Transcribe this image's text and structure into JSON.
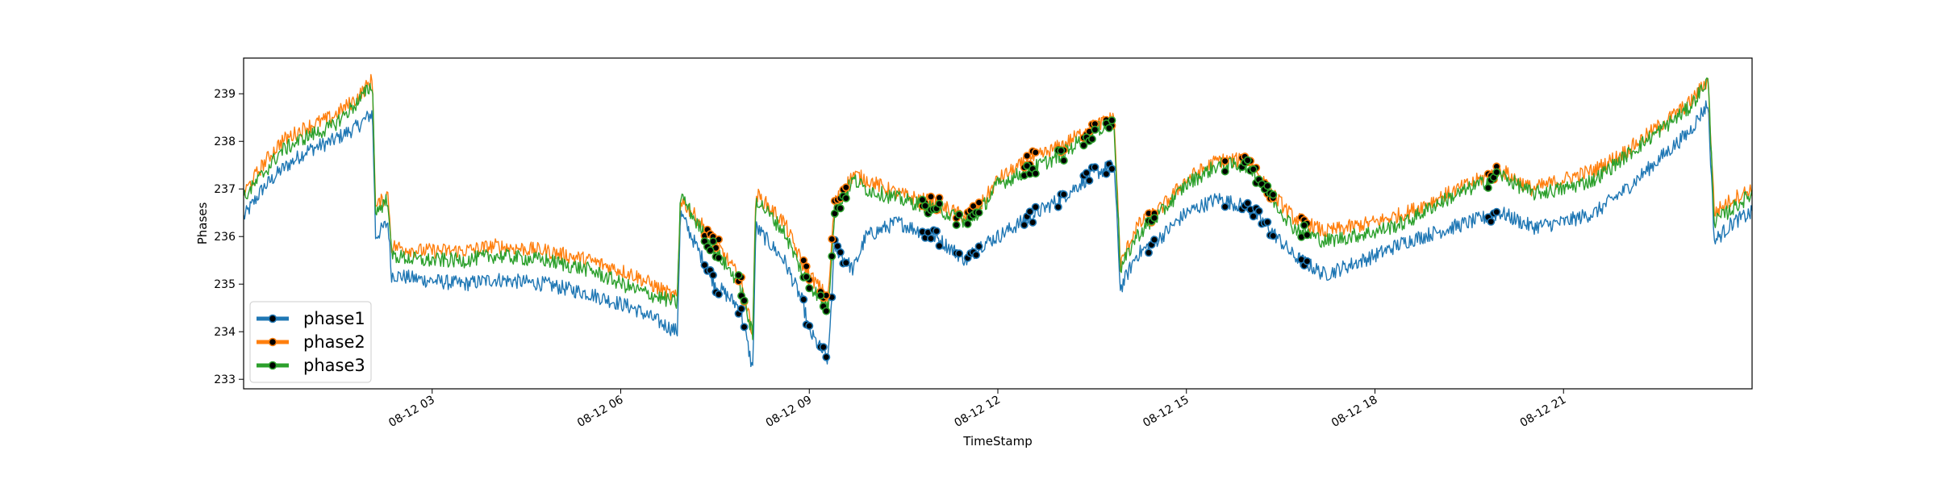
{
  "chart_data": {
    "type": "line",
    "xlabel": "TimeStamp",
    "ylabel": "Phases",
    "xlim": [
      0.0,
      24.0
    ],
    "ylim": [
      232.8,
      239.75
    ],
    "x_ticks": [
      {
        "value": 3,
        "label": "08-12 03"
      },
      {
        "value": 6,
        "label": "08-12 06"
      },
      {
        "value": 9,
        "label": "08-12 09"
      },
      {
        "value": 12,
        "label": "08-12 12"
      },
      {
        "value": 15,
        "label": "08-12 15"
      },
      {
        "value": 18,
        "label": "08-12 18"
      },
      {
        "value": 21,
        "label": "08-12 21"
      }
    ],
    "y_ticks": [
      233,
      234,
      235,
      236,
      237,
      238,
      239
    ],
    "grid": false,
    "legend": "lower-left",
    "series": [
      {
        "name": "phase1",
        "color": "#1f77b4",
        "points": [
          [
            0.0,
            236.4
          ],
          [
            0.3,
            237.0
          ],
          [
            0.6,
            237.4
          ],
          [
            1.0,
            237.8
          ],
          [
            1.4,
            238.0
          ],
          [
            1.8,
            238.3
          ],
          [
            2.05,
            238.6
          ],
          [
            2.1,
            236.0
          ],
          [
            2.3,
            236.3
          ],
          [
            2.35,
            235.2
          ],
          [
            2.8,
            235.1
          ],
          [
            3.5,
            235.0
          ],
          [
            4.0,
            235.1
          ],
          [
            4.8,
            235.0
          ],
          [
            5.5,
            234.8
          ],
          [
            6.2,
            234.5
          ],
          [
            6.9,
            234.0
          ],
          [
            6.95,
            236.5
          ],
          [
            7.2,
            235.8
          ],
          [
            7.5,
            235.0
          ],
          [
            7.9,
            234.5
          ],
          [
            8.1,
            233.2
          ],
          [
            8.15,
            236.2
          ],
          [
            8.6,
            235.5
          ],
          [
            8.9,
            234.6
          ],
          [
            9.0,
            234.0
          ],
          [
            9.3,
            233.4
          ],
          [
            9.4,
            235.8
          ],
          [
            9.7,
            235.3
          ],
          [
            9.9,
            236.0
          ],
          [
            10.4,
            236.3
          ],
          [
            11.0,
            236.0
          ],
          [
            11.5,
            235.5
          ],
          [
            11.7,
            235.8
          ],
          [
            12.0,
            236.0
          ],
          [
            12.5,
            236.4
          ],
          [
            13.0,
            236.8
          ],
          [
            13.5,
            237.3
          ],
          [
            13.85,
            237.5
          ],
          [
            13.95,
            234.9
          ],
          [
            14.2,
            235.6
          ],
          [
            14.6,
            236.0
          ],
          [
            15.0,
            236.5
          ],
          [
            15.5,
            236.8
          ],
          [
            16.0,
            236.6
          ],
          [
            16.3,
            236.2
          ],
          [
            16.7,
            235.6
          ],
          [
            17.2,
            235.2
          ],
          [
            17.6,
            235.4
          ],
          [
            18.0,
            235.6
          ],
          [
            18.5,
            235.9
          ],
          [
            19.0,
            236.1
          ],
          [
            19.5,
            236.3
          ],
          [
            20.0,
            236.5
          ],
          [
            20.5,
            236.2
          ],
          [
            21.0,
            236.3
          ],
          [
            21.5,
            236.5
          ],
          [
            22.0,
            237.0
          ],
          [
            22.5,
            237.6
          ],
          [
            23.0,
            238.2
          ],
          [
            23.3,
            238.8
          ],
          [
            23.4,
            235.9
          ],
          [
            23.7,
            236.3
          ],
          [
            24.0,
            236.5
          ]
        ]
      },
      {
        "name": "phase2",
        "color": "#ff7f0e",
        "points": [
          [
            0.0,
            236.9
          ],
          [
            0.3,
            237.5
          ],
          [
            0.6,
            238.0
          ],
          [
            1.0,
            238.3
          ],
          [
            1.4,
            238.5
          ],
          [
            1.8,
            238.9
          ],
          [
            2.05,
            239.3
          ],
          [
            2.1,
            236.6
          ],
          [
            2.3,
            236.9
          ],
          [
            2.35,
            235.8
          ],
          [
            2.8,
            235.7
          ],
          [
            3.5,
            235.7
          ],
          [
            4.0,
            235.8
          ],
          [
            4.8,
            235.7
          ],
          [
            5.5,
            235.5
          ],
          [
            6.2,
            235.2
          ],
          [
            6.9,
            234.7
          ],
          [
            6.95,
            236.8
          ],
          [
            7.2,
            236.4
          ],
          [
            7.5,
            235.9
          ],
          [
            7.9,
            235.1
          ],
          [
            8.1,
            234.0
          ],
          [
            8.15,
            236.9
          ],
          [
            8.6,
            236.3
          ],
          [
            8.9,
            235.4
          ],
          [
            9.0,
            235.2
          ],
          [
            9.3,
            234.7
          ],
          [
            9.4,
            236.7
          ],
          [
            9.7,
            237.3
          ],
          [
            9.9,
            237.2
          ],
          [
            10.4,
            236.9
          ],
          [
            11.0,
            236.7
          ],
          [
            11.5,
            236.4
          ],
          [
            11.7,
            236.6
          ],
          [
            12.0,
            237.2
          ],
          [
            12.5,
            237.6
          ],
          [
            13.0,
            237.9
          ],
          [
            13.5,
            238.3
          ],
          [
            13.85,
            238.5
          ],
          [
            13.95,
            235.4
          ],
          [
            14.2,
            236.2
          ],
          [
            14.6,
            236.6
          ],
          [
            15.0,
            237.2
          ],
          [
            15.5,
            237.6
          ],
          [
            16.0,
            237.6
          ],
          [
            16.3,
            237.0
          ],
          [
            16.7,
            236.4
          ],
          [
            17.2,
            236.1
          ],
          [
            17.6,
            236.2
          ],
          [
            18.0,
            236.3
          ],
          [
            18.5,
            236.5
          ],
          [
            19.0,
            236.8
          ],
          [
            19.5,
            237.1
          ],
          [
            20.0,
            237.4
          ],
          [
            20.5,
            237.0
          ],
          [
            21.0,
            237.2
          ],
          [
            21.5,
            237.4
          ],
          [
            22.0,
            237.8
          ],
          [
            22.5,
            238.3
          ],
          [
            23.0,
            238.8
          ],
          [
            23.3,
            239.3
          ],
          [
            23.4,
            236.5
          ],
          [
            23.7,
            236.8
          ],
          [
            24.0,
            237.0
          ]
        ]
      },
      {
        "name": "phase3",
        "color": "#2ca02c",
        "points": [
          [
            0.0,
            236.8
          ],
          [
            0.3,
            237.3
          ],
          [
            0.6,
            237.8
          ],
          [
            1.0,
            238.1
          ],
          [
            1.4,
            238.3
          ],
          [
            1.8,
            238.8
          ],
          [
            2.05,
            239.2
          ],
          [
            2.1,
            236.5
          ],
          [
            2.3,
            236.8
          ],
          [
            2.35,
            235.6
          ],
          [
            2.8,
            235.5
          ],
          [
            3.5,
            235.5
          ],
          [
            4.0,
            235.6
          ],
          [
            4.8,
            235.5
          ],
          [
            5.5,
            235.3
          ],
          [
            6.2,
            234.9
          ],
          [
            6.9,
            234.6
          ],
          [
            6.95,
            236.9
          ],
          [
            7.2,
            236.3
          ],
          [
            7.5,
            235.7
          ],
          [
            7.9,
            235.0
          ],
          [
            8.1,
            233.9
          ],
          [
            8.15,
            236.8
          ],
          [
            8.6,
            236.1
          ],
          [
            8.9,
            235.2
          ],
          [
            9.0,
            235.0
          ],
          [
            9.3,
            234.5
          ],
          [
            9.4,
            236.5
          ],
          [
            9.7,
            237.2
          ],
          [
            9.9,
            237.0
          ],
          [
            10.4,
            236.8
          ],
          [
            11.0,
            236.6
          ],
          [
            11.5,
            236.3
          ],
          [
            11.7,
            236.5
          ],
          [
            12.0,
            237.1
          ],
          [
            12.5,
            237.4
          ],
          [
            13.0,
            237.7
          ],
          [
            13.5,
            238.2
          ],
          [
            13.85,
            238.4
          ],
          [
            13.95,
            235.3
          ],
          [
            14.2,
            236.0
          ],
          [
            14.6,
            236.5
          ],
          [
            15.0,
            237.1
          ],
          [
            15.5,
            237.5
          ],
          [
            16.0,
            237.5
          ],
          [
            16.3,
            236.9
          ],
          [
            16.7,
            236.2
          ],
          [
            17.2,
            235.9
          ],
          [
            17.6,
            236.0
          ],
          [
            18.0,
            236.1
          ],
          [
            18.5,
            236.3
          ],
          [
            19.0,
            236.7
          ],
          [
            19.5,
            237.0
          ],
          [
            20.0,
            237.3
          ],
          [
            20.5,
            236.9
          ],
          [
            21.0,
            237.0
          ],
          [
            21.5,
            237.2
          ],
          [
            22.0,
            237.7
          ],
          [
            22.5,
            238.2
          ],
          [
            23.0,
            238.7
          ],
          [
            23.3,
            239.3
          ],
          [
            23.4,
            236.3
          ],
          [
            23.7,
            236.6
          ],
          [
            24.0,
            236.9
          ]
        ]
      }
    ],
    "anomaly_windows": [
      [
        7.3,
        7.6
      ],
      [
        7.85,
        8.0
      ],
      [
        8.9,
        9.0
      ],
      [
        9.15,
        9.3
      ],
      [
        9.35,
        9.6
      ],
      [
        10.8,
        11.1
      ],
      [
        11.3,
        11.4
      ],
      [
        11.5,
        11.7
      ],
      [
        12.4,
        12.6
      ],
      [
        12.95,
        13.05
      ],
      [
        13.35,
        13.55
      ],
      [
        13.7,
        13.85
      ],
      [
        14.4,
        14.5
      ],
      [
        15.6,
        15.65
      ],
      [
        15.85,
        16.4
      ],
      [
        16.8,
        16.95
      ],
      [
        19.8,
        19.95
      ]
    ]
  }
}
